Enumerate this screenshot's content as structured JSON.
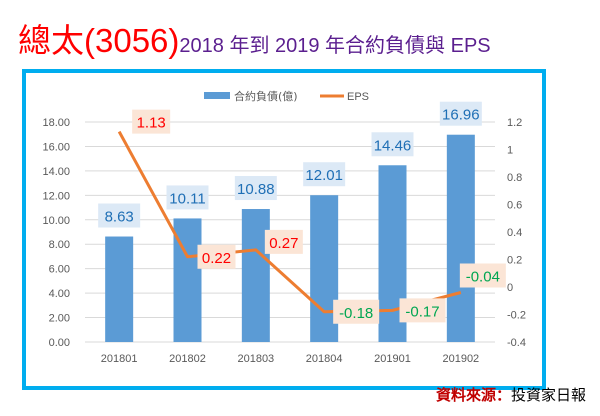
{
  "title": {
    "main": "總太(3056)",
    "sub": "2018 年到 2019 年合約負債與 EPS"
  },
  "source": {
    "label": "資料來源：",
    "value": "投資家日報"
  },
  "chart_data": {
    "type": "bar+line",
    "categories": [
      "201801",
      "201802",
      "201803",
      "201804",
      "201901",
      "201902"
    ],
    "series": [
      {
        "name": "合約負債(億)",
        "type": "bar",
        "axis": "left",
        "color": "#5b9bd5",
        "values": [
          8.63,
          10.11,
          10.88,
          12.01,
          14.46,
          16.96
        ]
      },
      {
        "name": "EPS",
        "type": "line",
        "axis": "right",
        "color": "#ed7d31",
        "values": [
          1.13,
          0.22,
          0.27,
          -0.18,
          -0.17,
          -0.04
        ]
      }
    ],
    "left_axis": {
      "range": [
        0,
        18
      ],
      "ticks": [
        "0.00",
        "2.00",
        "4.00",
        "6.00",
        "8.00",
        "10.00",
        "12.00",
        "14.00",
        "16.00",
        "18.00"
      ]
    },
    "right_axis": {
      "range": [
        -0.4,
        1.2
      ],
      "ticks": [
        "-0.4",
        "-0.2",
        "0",
        "0.2",
        "0.4",
        "0.6",
        "0.8",
        "1",
        "1.2"
      ]
    },
    "legend": "top",
    "grid": true,
    "colors": {
      "bar_label": "#1f6fb5",
      "eps_positive": "#ff0000",
      "eps_negative": "#00a651",
      "bar_label_bg": "#dce9f6",
      "eps_label_bg": "#fbe5d6"
    }
  }
}
